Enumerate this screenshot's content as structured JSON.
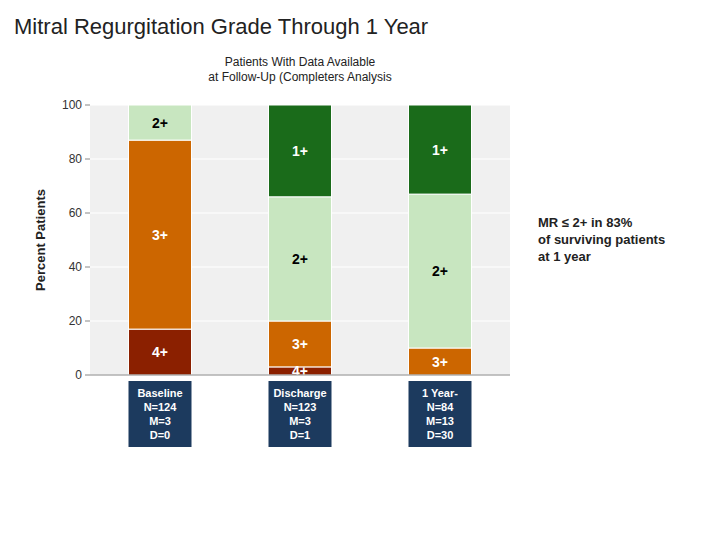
{
  "chart_data": {
    "type": "bar",
    "stacked": true,
    "title": "Mitral Regurgitation Grade Through 1 Year",
    "subtitle": "Patients With Data Available\nat Follow-Up (Completers Analysis",
    "ylabel": "Percent Patients",
    "annotation": "MR ≤ 2+ in 83%\nof surviving patients\nat 1 year",
    "categories": [
      "Baseline\nN=124\nM=3\nD=0",
      "Discharge\nN=123\nM=3\nD=1",
      "1 Year-\nN=84\nM=13\nD=30"
    ],
    "series": [
      {
        "name": "4+",
        "color": "#8B2000",
        "values": [
          17,
          3,
          0
        ]
      },
      {
        "name": "3+",
        "color": "#CC6600",
        "values": [
          70,
          17,
          10
        ]
      },
      {
        "name": "2+",
        "color": "#C8E6C0",
        "values": [
          13,
          46,
          57
        ]
      },
      {
        "name": "1+",
        "color": "#1A6B1A",
        "values": [
          0,
          34,
          33
        ]
      }
    ],
    "ylim": [
      0,
      100
    ],
    "yticks": [
      0,
      20,
      40,
      60,
      80,
      100
    ],
    "grid": true
  }
}
